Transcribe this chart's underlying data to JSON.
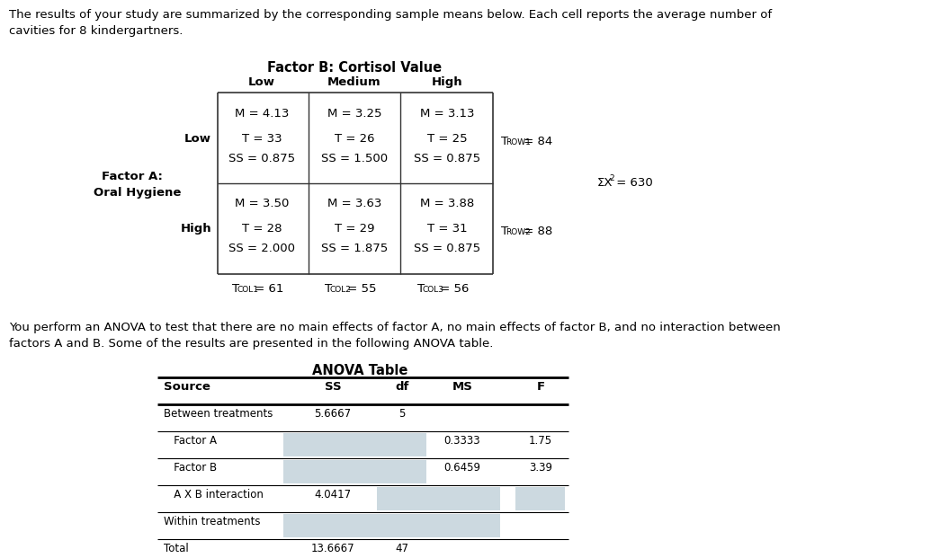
{
  "intro_text1": "The results of your study are summarized by the corresponding sample means below. Each cell reports the average number of",
  "intro_text2": "cavities for 8 kindergartners.",
  "factor_b_title": "Factor B: Cortisol Value",
  "col_headers": [
    "Low",
    "Medium",
    "High"
  ],
  "row_headers": [
    "Low",
    "High"
  ],
  "factor_a_label": "Factor A:",
  "factor_a_sublabel": "Oral Hygiene",
  "cells": [
    [
      {
        "M": "4.13",
        "T": "33",
        "SS": "0.875"
      },
      {
        "M": "3.25",
        "T": "26",
        "SS": "1.500"
      },
      {
        "M": "3.13",
        "T": "25",
        "SS": "0.875"
      }
    ],
    [
      {
        "M": "3.50",
        "T": "28",
        "SS": "2.000"
      },
      {
        "M": "3.63",
        "T": "29",
        "SS": "1.875"
      },
      {
        "M": "3.88",
        "T": "31",
        "SS": "0.875"
      }
    ]
  ],
  "row_total_vals": [
    "84",
    "88"
  ],
  "col_total_vals": [
    "61",
    "55",
    "56"
  ],
  "sigma_x2": "630",
  "anova_intro1": "You perform an ANOVA to test that there are no main effects of factor A, no main effects of factor B, and no interaction between",
  "anova_intro2": "factors A and B. Some of the results are presented in the following ANOVA table.",
  "anova_title": "ANOVA Table",
  "anova_headers": [
    "Source",
    "SS",
    "df",
    "MS",
    "F"
  ],
  "anova_rows": [
    {
      "source": "Between treatments",
      "SS": "5.6667",
      "df": "5",
      "MS": "",
      "F": "",
      "shaded": [
        false,
        false,
        false,
        false
      ]
    },
    {
      "source": "   Factor A",
      "SS": "",
      "df": "",
      "MS": "0.3333",
      "F": "1.75",
      "shaded": [
        true,
        true,
        false,
        false
      ]
    },
    {
      "source": "   Factor B",
      "SS": "",
      "df": "",
      "MS": "0.6459",
      "F": "3.39",
      "shaded": [
        true,
        true,
        false,
        false
      ]
    },
    {
      "source": "   A X B interaction",
      "SS": "4.0417",
      "df": "",
      "MS": "",
      "F": "",
      "shaded": [
        false,
        true,
        true,
        true
      ]
    },
    {
      "source": "Within treatments",
      "SS": "",
      "df": "",
      "MS": "",
      "F": "",
      "shaded": [
        true,
        true,
        true,
        false
      ]
    },
    {
      "source": "Total",
      "SS": "13.6667",
      "df": "47",
      "MS": "",
      "F": "",
      "shaded": [
        false,
        false,
        false,
        false
      ]
    }
  ],
  "shade_color": "#ccd9e0",
  "white": "#ffffff",
  "text_color": "#000000",
  "fs_body": 9.5,
  "fs_small": 8.5,
  "fs_title": 10.5,
  "fs_sub": 6.5
}
